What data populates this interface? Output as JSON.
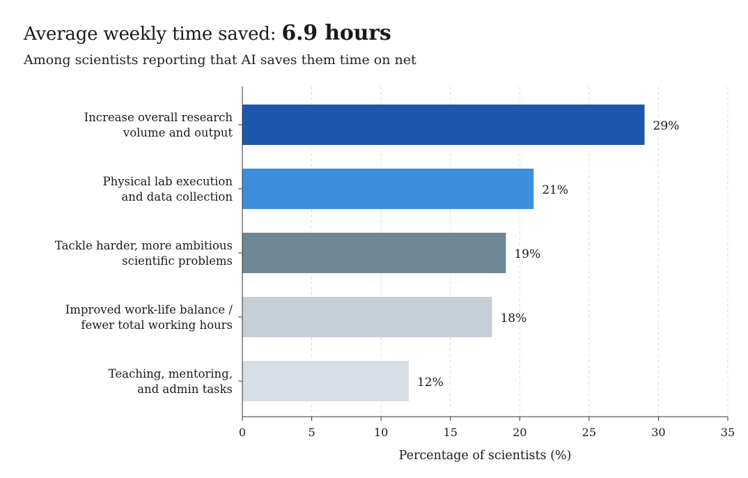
{
  "header": {
    "title_prefix": "Average weekly time saved:",
    "title_highlight": "6.9 hours",
    "subtitle": "Among scientists reporting that AI saves them time on net"
  },
  "chart_data": {
    "type": "bar",
    "orientation": "horizontal",
    "categories": [
      [
        "Increase overall research",
        "volume and output"
      ],
      [
        "Physical lab execution",
        "and data collection"
      ],
      [
        "Tackle harder, more ambitious",
        "scientific problems"
      ],
      [
        "Improved work-life balance /",
        "fewer total working hours"
      ],
      [
        "Teaching, mentoring,",
        "and admin tasks"
      ]
    ],
    "values": [
      29,
      21,
      19,
      18,
      12
    ],
    "value_labels": [
      "29%",
      "21%",
      "19%",
      "18%",
      "12%"
    ],
    "colors": [
      "#1f56ad",
      "#3d8fde",
      "#6e8896",
      "#c6cfd8",
      "#d8dee5"
    ],
    "xlabel": "Percentage of scientists (%)",
    "ylabel": "",
    "xlim": [
      0,
      35
    ],
    "xticks": [
      0,
      5,
      10,
      15,
      20,
      25,
      30,
      35
    ],
    "grid": "vertical-dashed",
    "legend": "none"
  }
}
